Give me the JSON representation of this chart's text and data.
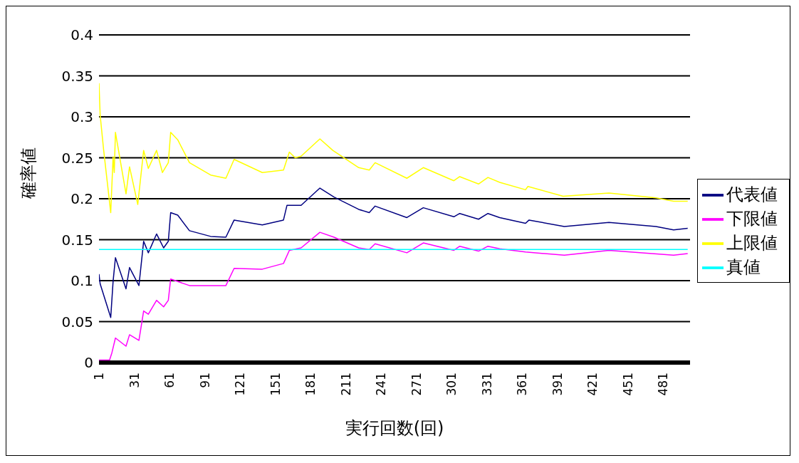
{
  "chart_data": {
    "type": "line",
    "xlabel": "実行回数(回)",
    "ylabel": "確率値",
    "xlim": [
      1,
      504
    ],
    "xticks": [
      1,
      31,
      61,
      91,
      121,
      151,
      181,
      211,
      241,
      271,
      301,
      331,
      361,
      391,
      421,
      451,
      481
    ],
    "ylim": [
      0,
      0.4
    ],
    "yticks": [
      0,
      0.05,
      0.1,
      0.15,
      0.2,
      0.25,
      0.3,
      0.35,
      0.4
    ],
    "grid": "y",
    "legend": "right",
    "marker": "none",
    "line_style": "solid",
    "series": [
      {
        "name": "代表値",
        "color": "#000080",
        "x": [
          1,
          2,
          11,
          13,
          15,
          24,
          27,
          35,
          39,
          43,
          50,
          56,
          60,
          62,
          68,
          78,
          96,
          109,
          116,
          140,
          158,
          161,
          173,
          189,
          201,
          222,
          231,
          236,
          263,
          277,
          303,
          308,
          324,
          332,
          342,
          364,
          367,
          397,
          435,
          475,
          490,
          502
        ],
        "values": [
          0.108,
          0.096,
          0.055,
          0.099,
          0.128,
          0.09,
          0.116,
          0.094,
          0.148,
          0.134,
          0.157,
          0.14,
          0.148,
          0.183,
          0.18,
          0.161,
          0.154,
          0.153,
          0.174,
          0.168,
          0.174,
          0.192,
          0.192,
          0.213,
          0.202,
          0.187,
          0.183,
          0.191,
          0.177,
          0.189,
          0.178,
          0.182,
          0.175,
          0.182,
          0.177,
          0.17,
          0.174,
          0.166,
          0.171,
          0.166,
          0.162,
          0.164
        ]
      },
      {
        "name": "下限値",
        "color": "#ff00ff",
        "x": [
          1,
          10,
          12,
          15,
          24,
          27,
          35,
          39,
          43,
          50,
          56,
          60,
          62,
          78,
          96,
          109,
          116,
          140,
          158,
          163,
          173,
          189,
          201,
          222,
          231,
          236,
          263,
          277,
          303,
          308,
          324,
          332,
          342,
          364,
          397,
          435,
          490,
          502
        ],
        "values": [
          0.003,
          0.003,
          0.012,
          0.03,
          0.02,
          0.034,
          0.027,
          0.063,
          0.059,
          0.076,
          0.068,
          0.076,
          0.102,
          0.094,
          0.094,
          0.094,
          0.115,
          0.114,
          0.121,
          0.137,
          0.14,
          0.159,
          0.153,
          0.14,
          0.138,
          0.145,
          0.134,
          0.146,
          0.137,
          0.142,
          0.136,
          0.142,
          0.139,
          0.135,
          0.131,
          0.137,
          0.131,
          0.133
        ]
      },
      {
        "name": "上限値",
        "color": "#ffff00",
        "x": [
          1,
          2,
          5,
          11,
          13,
          14,
          15,
          24,
          27,
          34,
          39,
          43,
          50,
          55,
          60,
          62,
          68,
          78,
          96,
          109,
          116,
          140,
          158,
          163,
          168,
          173,
          189,
          200,
          222,
          231,
          236,
          263,
          277,
          303,
          308,
          324,
          332,
          342,
          364,
          366,
          396,
          435,
          475,
          490,
          502
        ],
        "values": [
          0.341,
          0.302,
          0.259,
          0.183,
          0.251,
          0.232,
          0.281,
          0.206,
          0.239,
          0.193,
          0.259,
          0.237,
          0.259,
          0.232,
          0.244,
          0.281,
          0.272,
          0.244,
          0.229,
          0.225,
          0.248,
          0.232,
          0.235,
          0.257,
          0.25,
          0.252,
          0.273,
          0.259,
          0.238,
          0.235,
          0.244,
          0.225,
          0.238,
          0.222,
          0.227,
          0.218,
          0.226,
          0.22,
          0.211,
          0.215,
          0.203,
          0.207,
          0.201,
          0.197,
          0.197
        ]
      },
      {
        "name": "真値",
        "color": "#00ffff",
        "x": [
          1,
          502
        ],
        "values": [
          0.138,
          0.138
        ]
      }
    ]
  }
}
